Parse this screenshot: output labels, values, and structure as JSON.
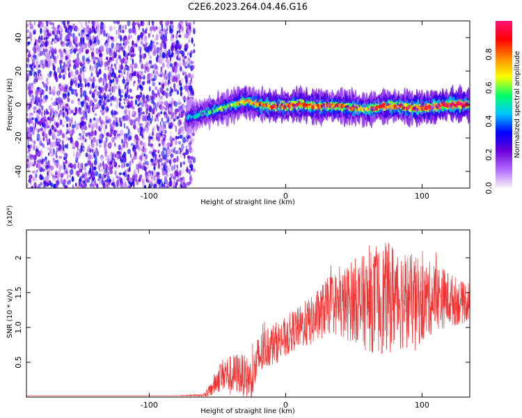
{
  "title": "C2E6.2023.264.04.46.G16",
  "chart_data": [
    {
      "type": "heatmap",
      "xlabel": "Height of straight line (km)",
      "ylabel": "Frequency (Hz)",
      "xlim": [
        -190,
        135
      ],
      "ylim": [
        -50,
        50
      ],
      "xticks": [
        -100,
        0,
        100
      ],
      "yticks": [
        -40,
        -20,
        0,
        20,
        40
      ],
      "grid": false,
      "colorbar": {
        "label": "Normalized spectral amplitude",
        "range": [
          0.0,
          1.0
        ],
        "ticks": [
          0.0,
          0.2,
          0.4,
          0.6,
          0.8
        ],
        "colormap": [
          "#f5f5f5",
          "#b36bff",
          "#6a00d9",
          "#0000ff",
          "#00c8ff",
          "#00ff66",
          "#ffff00",
          "#ff8800",
          "#ff0000",
          "#ff1077"
        ]
      },
      "noise_region_x": [
        -190,
        -70
      ],
      "ridge": {
        "x": [
          -72,
          -60,
          -50,
          -40,
          -30,
          -20,
          -10,
          0,
          10,
          20,
          30,
          40,
          50,
          60,
          70,
          80,
          90,
          100,
          110,
          120,
          135
        ],
        "frequency": [
          -8,
          -5,
          -3,
          -1,
          2,
          0,
          -1,
          -1,
          0,
          -1,
          -1,
          -1,
          -2,
          -3,
          -1,
          -1,
          -2,
          -2,
          -1,
          0,
          0
        ],
        "peak_amplitude": [
          0.45,
          0.55,
          0.6,
          0.65,
          0.75,
          0.8,
          0.85,
          0.85,
          0.9,
          0.85,
          0.85,
          0.8,
          0.85,
          0.75,
          0.9,
          0.85,
          0.9,
          0.9,
          0.95,
          1.0,
          1.0
        ]
      }
    },
    {
      "type": "line",
      "xlabel": "Height of straight line (km)",
      "ylabel": "SNR (10 * v/v)",
      "y_multiplier": "(x10⁴)",
      "xlim": [
        -190,
        135
      ],
      "ylim": [
        0,
        2.4
      ],
      "xticks": [
        -100,
        0,
        100
      ],
      "yticks": [
        0.5,
        1.0,
        1.5,
        2.0
      ],
      "series": [
        {
          "color": "#ee3333",
          "x": [
            -190,
            -160,
            -130,
            -100,
            -80,
            -60,
            -55,
            -50,
            -45,
            -40,
            -35,
            -30,
            -25,
            -20,
            -15,
            -10,
            -5,
            0,
            5,
            10,
            15,
            20,
            25,
            30,
            35,
            40,
            45,
            50,
            60,
            70,
            80,
            90,
            100,
            110,
            120,
            130,
            135
          ],
          "values": [
            0.02,
            0.02,
            0.02,
            0.02,
            0.02,
            0.03,
            0.1,
            0.25,
            0.35,
            0.3,
            0.35,
            0.3,
            0.25,
            0.55,
            0.7,
            0.75,
            0.8,
            0.85,
            0.95,
            1.0,
            1.05,
            1.1,
            1.2,
            1.3,
            1.35,
            1.3,
            1.35,
            1.4,
            1.35,
            1.4,
            1.45,
            1.4,
            1.35,
            1.45,
            1.4,
            1.35,
            1.4
          ],
          "spread": [
            0.0,
            0.0,
            0.0,
            0.0,
            0.0,
            0.02,
            0.1,
            0.2,
            0.25,
            0.3,
            0.3,
            0.3,
            0.3,
            0.35,
            0.3,
            0.3,
            0.3,
            0.3,
            0.3,
            0.3,
            0.35,
            0.35,
            0.4,
            0.4,
            0.45,
            0.5,
            0.55,
            0.6,
            0.7,
            0.8,
            0.8,
            0.7,
            0.6,
            0.5,
            0.4,
            0.3,
            0.3
          ]
        }
      ]
    }
  ]
}
